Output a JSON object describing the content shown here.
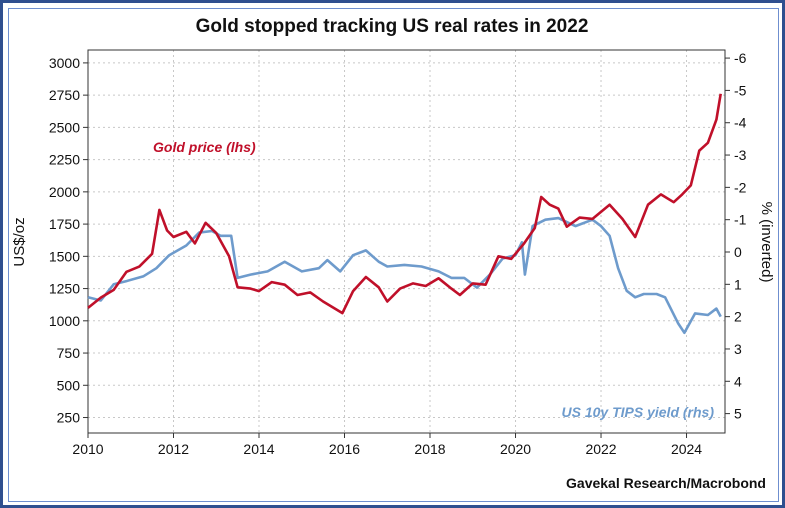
{
  "chart_data": {
    "type": "line",
    "title": "Gold stopped tracking US real rates in 2022",
    "ylabel_left": "US$/oz",
    "ylabel_right": "% (inverted)",
    "source": "Gavekal Research/Macrobond",
    "xlim": [
      2010,
      2024.9
    ],
    "ylim_left": [
      130,
      3100
    ],
    "ylim_right": [
      5.6,
      -6.25
    ],
    "right_axis_inverted": true,
    "x_ticks": [
      2010,
      2012,
      2014,
      2016,
      2018,
      2020,
      2022,
      2024
    ],
    "x_tick_labels": [
      "2010",
      "2012",
      "2014",
      "2016",
      "2018",
      "2020",
      "2022",
      "2024"
    ],
    "y_left_ticks": [
      250,
      500,
      750,
      1000,
      1250,
      1500,
      1750,
      2000,
      2250,
      2500,
      2750,
      3000
    ],
    "y_left_tick_labels": [
      "250",
      "500",
      "750",
      "1000",
      "1250",
      "1500",
      "1750",
      "2000",
      "2250",
      "2500",
      "2750",
      "3000"
    ],
    "y_right_ticks": [
      5,
      4,
      3,
      2,
      1,
      0,
      -1,
      -2,
      -3,
      -4,
      -5,
      -6
    ],
    "y_right_tick_labels": [
      "5",
      "4",
      "3",
      "2",
      "1",
      "0",
      "-1",
      "-2",
      "-3",
      "-4",
      "-5",
      "-6"
    ],
    "grid": true,
    "colors": {
      "gold": "#c0102a",
      "tips": "#6e9bcc",
      "frame": "#2f4f8f"
    },
    "series": [
      {
        "name": "Gold price (lhs)",
        "axis": "left",
        "x": [
          2010.0,
          2010.3,
          2010.6,
          2010.9,
          2011.2,
          2011.5,
          2011.67,
          2011.85,
          2012.0,
          2012.3,
          2012.5,
          2012.75,
          2013.0,
          2013.3,
          2013.5,
          2013.8,
          2014.0,
          2014.3,
          2014.6,
          2014.9,
          2015.2,
          2015.5,
          2015.95,
          2016.2,
          2016.5,
          2016.8,
          2017.0,
          2017.3,
          2017.6,
          2017.9,
          2018.2,
          2018.5,
          2018.7,
          2019.0,
          2019.3,
          2019.6,
          2019.9,
          2020.2,
          2020.45,
          2020.6,
          2020.8,
          2021.0,
          2021.2,
          2021.5,
          2021.8,
          2022.2,
          2022.5,
          2022.8,
          2023.1,
          2023.4,
          2023.7,
          2023.9,
          2024.1,
          2024.3,
          2024.5,
          2024.7,
          2024.8
        ],
        "y": [
          1100,
          1180,
          1240,
          1380,
          1420,
          1520,
          1860,
          1700,
          1650,
          1690,
          1600,
          1760,
          1680,
          1500,
          1260,
          1250,
          1230,
          1300,
          1280,
          1200,
          1220,
          1150,
          1060,
          1230,
          1340,
          1260,
          1150,
          1250,
          1290,
          1270,
          1330,
          1250,
          1200,
          1290,
          1280,
          1500,
          1480,
          1600,
          1720,
          1960,
          1900,
          1870,
          1730,
          1800,
          1790,
          1900,
          1790,
          1650,
          1900,
          1980,
          1920,
          1980,
          2050,
          2320,
          2380,
          2560,
          2760
        ]
      },
      {
        "name": "US 10y TIPS yield (rhs)",
        "axis": "right",
        "x": [
          2010.0,
          2010.3,
          2010.6,
          2010.9,
          2011.3,
          2011.6,
          2011.9,
          2012.3,
          2012.6,
          2012.9,
          2013.1,
          2013.35,
          2013.5,
          2013.8,
          2014.2,
          2014.6,
          2015.0,
          2015.4,
          2015.6,
          2015.9,
          2016.2,
          2016.5,
          2016.8,
          2017.0,
          2017.4,
          2017.8,
          2018.2,
          2018.5,
          2018.8,
          2019.1,
          2019.4,
          2019.7,
          2020.0,
          2020.15,
          2020.22,
          2020.4,
          2020.7,
          2021.0,
          2021.4,
          2021.8,
          2022.0,
          2022.2,
          2022.4,
          2022.6,
          2022.8,
          2023.0,
          2023.3,
          2023.5,
          2023.8,
          2023.95,
          2024.2,
          2024.5,
          2024.7,
          2024.8
        ],
        "y": [
          1.4,
          1.5,
          1.0,
          0.9,
          0.75,
          0.5,
          0.1,
          -0.2,
          -0.6,
          -0.65,
          -0.5,
          -0.5,
          0.8,
          0.7,
          0.6,
          0.3,
          0.6,
          0.5,
          0.25,
          0.6,
          0.1,
          -0.05,
          0.3,
          0.45,
          0.4,
          0.45,
          0.6,
          0.8,
          0.8,
          1.1,
          0.7,
          0.2,
          0.1,
          -0.3,
          0.7,
          -0.8,
          -1.0,
          -1.05,
          -0.8,
          -1.0,
          -0.8,
          -0.5,
          0.5,
          1.2,
          1.4,
          1.3,
          1.3,
          1.4,
          2.2,
          2.5,
          1.9,
          1.95,
          1.75,
          2.0
        ]
      }
    ],
    "annotations": [
      {
        "text": "Gold price (lhs)",
        "color": "#c0102a"
      },
      {
        "text": "US 10y TIPS yield (rhs)",
        "color": "#6e9bcc"
      }
    ]
  }
}
